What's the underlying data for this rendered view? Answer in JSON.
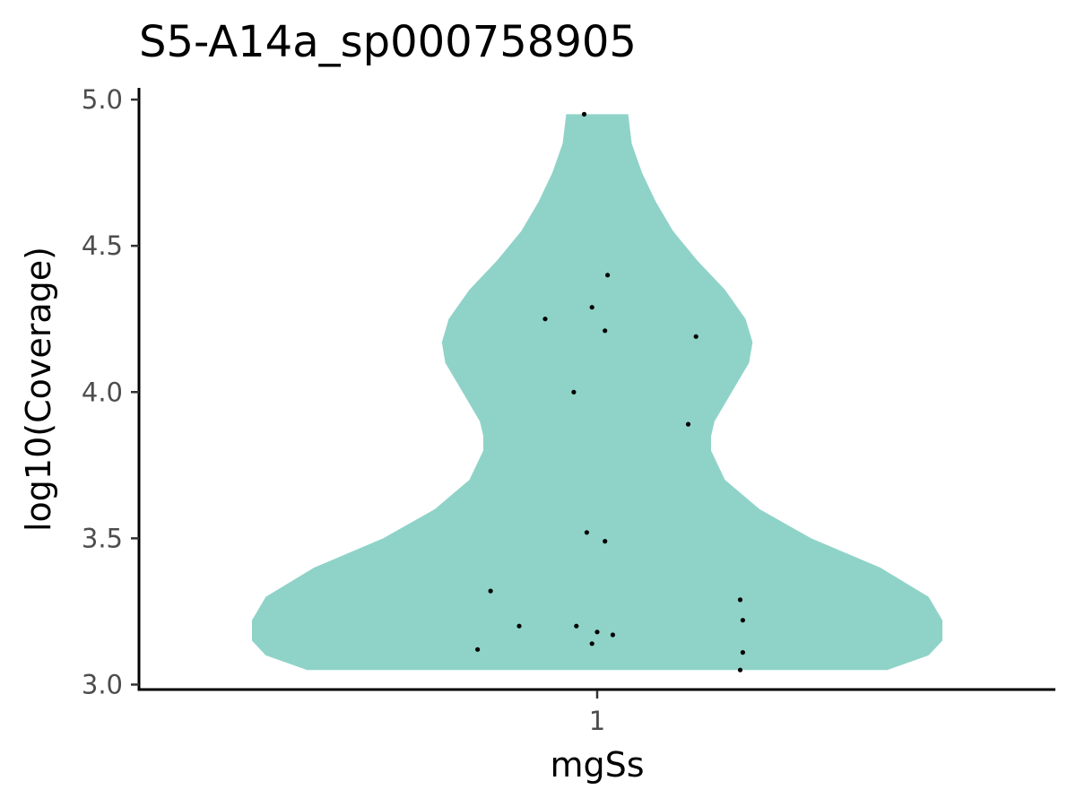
{
  "chart_data": {
    "type": "violin",
    "title": "S5-A14a_sp000758905",
    "xlabel": "mgSs",
    "ylabel": "log10(Coverage)",
    "categories": [
      "1"
    ],
    "ylim": [
      2.98,
      5.04
    ],
    "yticks": [
      "3.0",
      "3.5",
      "4.0",
      "4.5",
      "5.0"
    ],
    "grid": false,
    "legend": "none",
    "violin_color": "#8fd3c8",
    "point_color": "#000000",
    "density_profile": {
      "y": [
        3.05,
        3.1,
        3.15,
        3.22,
        3.3,
        3.4,
        3.5,
        3.6,
        3.7,
        3.8,
        3.85,
        3.9,
        4.0,
        4.1,
        4.17,
        4.25,
        4.35,
        4.45,
        4.55,
        4.65,
        4.75,
        4.85,
        4.95
      ],
      "relative_width": [
        0.84,
        0.96,
        1.0,
        1.0,
        0.96,
        0.82,
        0.62,
        0.47,
        0.37,
        0.33,
        0.33,
        0.34,
        0.39,
        0.44,
        0.45,
        0.43,
        0.37,
        0.29,
        0.22,
        0.17,
        0.13,
        0.1,
        0.09
      ]
    },
    "points": [
      {
        "x": 0.95,
        "y": 4.95
      },
      {
        "x": 1.04,
        "y": 4.4
      },
      {
        "x": 0.98,
        "y": 4.29
      },
      {
        "x": 0.8,
        "y": 4.25
      },
      {
        "x": 1.03,
        "y": 4.21
      },
      {
        "x": 1.38,
        "y": 4.19
      },
      {
        "x": 0.91,
        "y": 4.0
      },
      {
        "x": 1.35,
        "y": 3.89
      },
      {
        "x": 0.96,
        "y": 3.52
      },
      {
        "x": 1.03,
        "y": 3.49
      },
      {
        "x": 0.59,
        "y": 3.32
      },
      {
        "x": 1.55,
        "y": 3.29
      },
      {
        "x": 1.56,
        "y": 3.22
      },
      {
        "x": 0.7,
        "y": 3.2
      },
      {
        "x": 0.92,
        "y": 3.2
      },
      {
        "x": 1.0,
        "y": 3.18
      },
      {
        "x": 1.06,
        "y": 3.17
      },
      {
        "x": 0.98,
        "y": 3.14
      },
      {
        "x": 0.54,
        "y": 3.12
      },
      {
        "x": 1.56,
        "y": 3.11
      },
      {
        "x": 1.55,
        "y": 3.05
      }
    ]
  }
}
